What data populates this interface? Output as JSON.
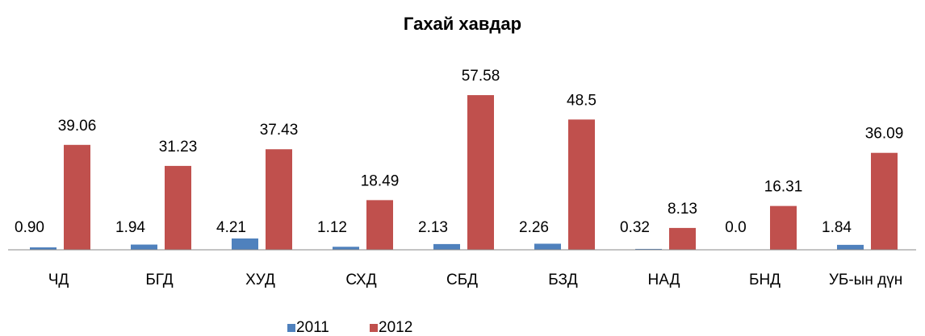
{
  "chart_data": {
    "type": "bar",
    "title": "Гахай хавдар",
    "categories": [
      "ЧД",
      "БГД",
      "ХУД",
      "СХД",
      "СБД",
      "БЗД",
      "НАД",
      "БНД",
      "УБ-ын дүн"
    ],
    "series": [
      {
        "name": "2011",
        "color": "#4f81bd",
        "values": [
          0.9,
          1.94,
          4.21,
          1.12,
          2.13,
          2.26,
          0.32,
          0,
          1.84
        ],
        "value_labels": [
          "0.90",
          "1.94",
          "4.21",
          "1.12",
          "2.13",
          "2.26",
          "0.32",
          "0.0",
          "1.84"
        ]
      },
      {
        "name": "2012",
        "color": "#c0504d",
        "values": [
          39.06,
          31.23,
          37.43,
          18.49,
          57.58,
          48.5,
          8.13,
          16.31,
          36.09
        ],
        "value_labels": [
          "39.06",
          "31.23",
          "37.43",
          "18.49",
          "57.58",
          "48.5",
          "8.13",
          "16.31",
          "36.09"
        ]
      }
    ],
    "ylim": [
      0,
      60
    ],
    "legend": "bottom"
  }
}
